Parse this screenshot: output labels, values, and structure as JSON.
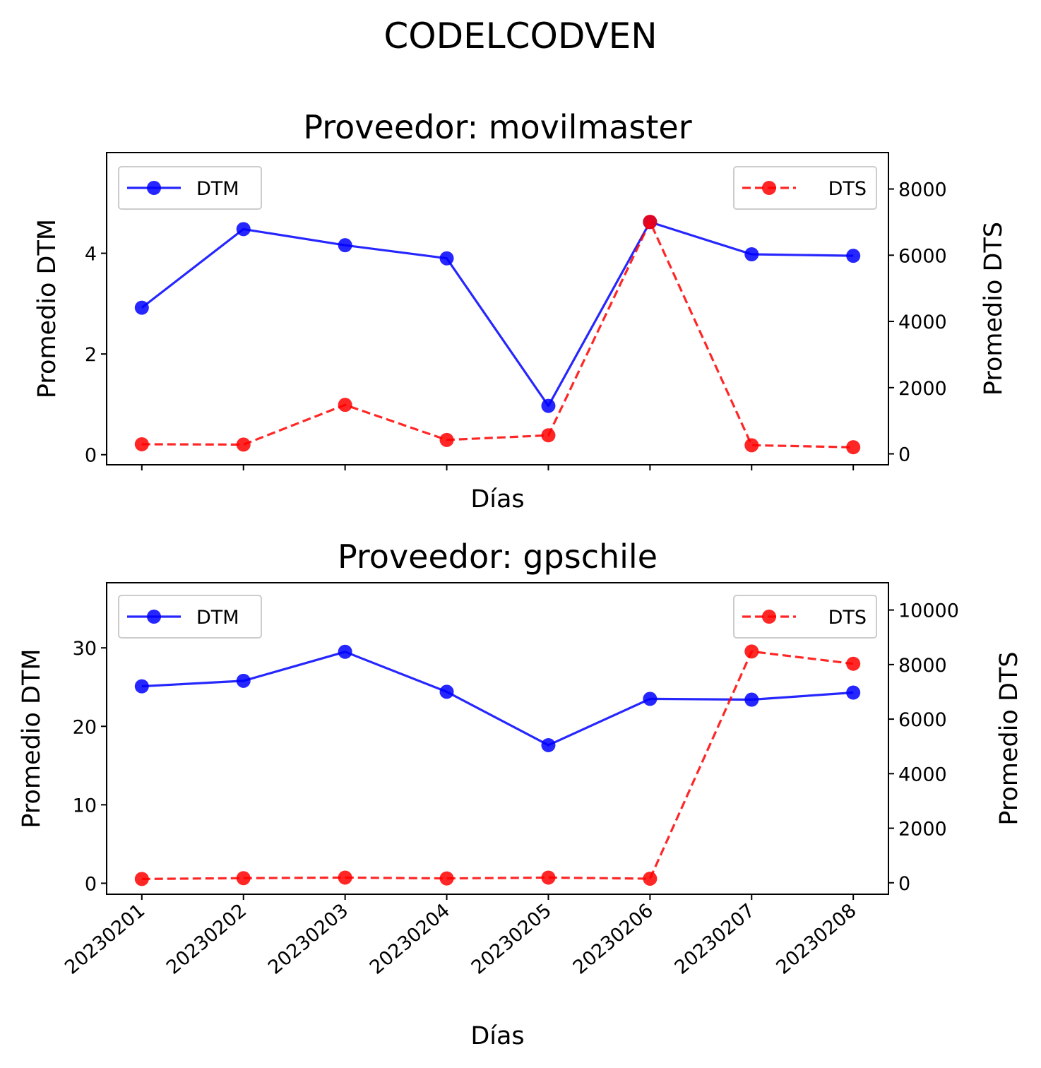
{
  "figure_title": "CODELCODVEN",
  "chart_data": [
    {
      "type": "line",
      "title": "Proveedor: movilmaster",
      "xlabel": "Días",
      "ylabel_left": "Promedio DTM",
      "ylabel_right": "Promedio DTS",
      "categories": [
        "20230201",
        "20230202",
        "20230203",
        "20230204",
        "20230205",
        "20230206",
        "20230207",
        "20230208"
      ],
      "show_xtick_labels": false,
      "ylim_left": [
        -0.2,
        6.0
      ],
      "yticks_left": [
        0,
        2,
        4
      ],
      "ylim_right": [
        -330,
        9100
      ],
      "yticks_right": [
        0,
        2000,
        4000,
        6000,
        8000
      ],
      "series": [
        {
          "name": "DTM",
          "axis": "left",
          "color": "#0000ff",
          "style": "solid",
          "values": [
            2.92,
            4.48,
            4.16,
            3.9,
            0.97,
            4.62,
            3.98,
            3.95
          ]
        },
        {
          "name": "DTS",
          "axis": "right",
          "color": "#ff0000",
          "style": "dashed",
          "values": [
            290,
            280,
            1480,
            420,
            560,
            7010,
            260,
            200
          ]
        }
      ],
      "legend_left": "top-left",
      "legend_right": "top-right",
      "grid": false
    },
    {
      "type": "line",
      "title": "Proveedor: gpschile",
      "xlabel": "Días",
      "ylabel_left": "Promedio DTM",
      "ylabel_right": "Promedio DTS",
      "categories": [
        "20230201",
        "20230202",
        "20230203",
        "20230204",
        "20230205",
        "20230206",
        "20230207",
        "20230208"
      ],
      "show_xtick_labels": true,
      "ylim_left": [
        -1.4,
        38.3
      ],
      "yticks_left": [
        0,
        10,
        20,
        30
      ],
      "ylim_right": [
        -420,
        11000
      ],
      "yticks_right": [
        0,
        2000,
        4000,
        6000,
        8000,
        10000
      ],
      "series": [
        {
          "name": "DTM",
          "axis": "left",
          "color": "#0000ff",
          "style": "solid",
          "values": [
            25.1,
            25.8,
            29.5,
            24.4,
            17.6,
            23.5,
            23.4,
            24.3
          ]
        },
        {
          "name": "DTS",
          "axis": "right",
          "color": "#ff0000",
          "style": "dashed",
          "values": [
            140,
            170,
            190,
            160,
            190,
            150,
            8480,
            8030
          ]
        }
      ],
      "legend_left": "top-left",
      "legend_right": "top-right",
      "grid": false
    }
  ]
}
